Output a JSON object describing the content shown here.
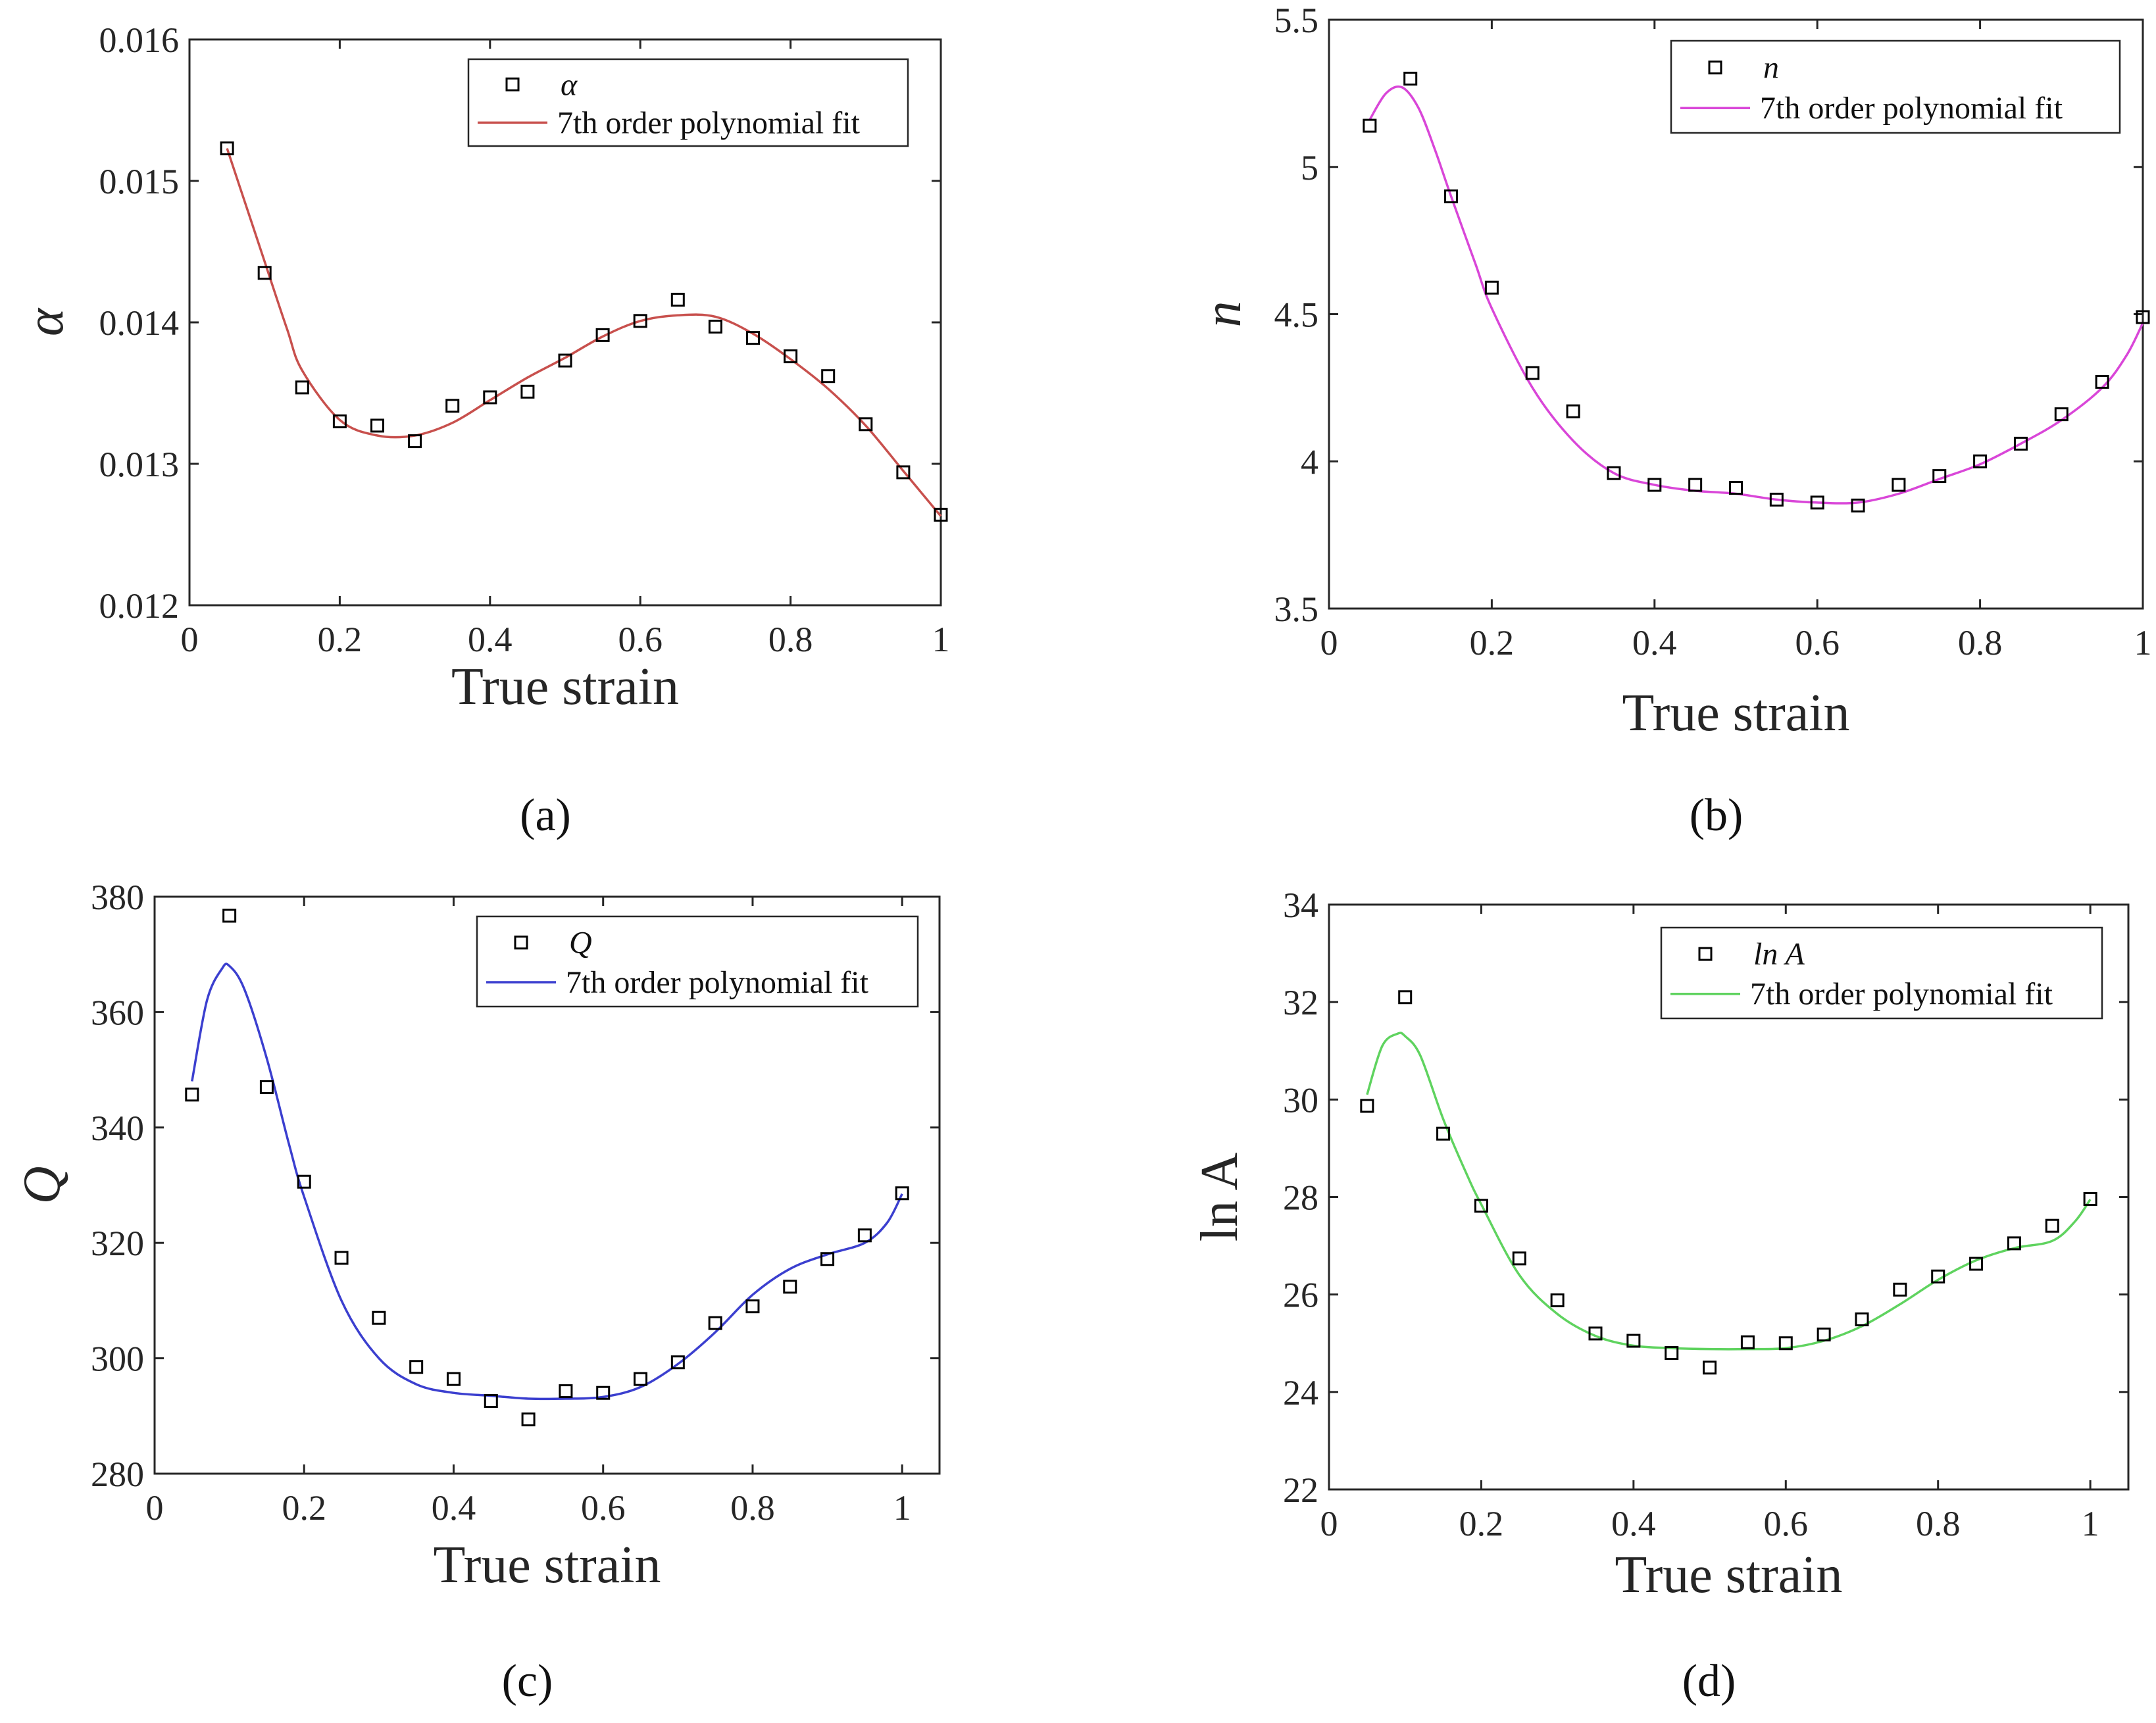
{
  "chart_data": [
    {
      "type": "scatter",
      "panel_label": "(a)",
      "xlabel": "True strain",
      "ylabel": "α",
      "xlim": [
        0,
        1
      ],
      "ylim": [
        0.012,
        0.016
      ],
      "xticks": [
        0,
        0.2,
        0.4,
        0.6,
        0.8,
        1
      ],
      "xtick_labels": [
        "0",
        "0.2",
        "0.4",
        "0.6",
        "0.8",
        "1"
      ],
      "yticks": [
        0.012,
        0.013,
        0.014,
        0.015,
        0.016
      ],
      "ytick_labels": [
        "0.012",
        "0.013",
        "0.014",
        "0.015",
        "0.016"
      ],
      "legend_position": "top-right",
      "series": [
        {
          "name": "α",
          "kind": "markers",
          "marker": "square",
          "color": "#000000",
          "x": [
            0.05,
            0.1,
            0.15,
            0.2,
            0.25,
            0.3,
            0.35,
            0.4,
            0.45,
            0.5,
            0.55,
            0.6,
            0.65,
            0.7,
            0.75,
            0.8,
            0.85,
            0.9,
            0.95,
            1.0
          ],
          "y": [
            0.01523,
            0.01435,
            0.01354,
            0.0133,
            0.01327,
            0.01316,
            0.01341,
            0.01347,
            0.01351,
            0.01373,
            0.01391,
            0.01401,
            0.01416,
            0.01397,
            0.01389,
            0.01376,
            0.01362,
            0.01328,
            0.01294,
            0.01264
          ]
        },
        {
          "name": "7th order polynomial fit",
          "kind": "line",
          "color": "#c8504d",
          "x": [
            0.05,
            0.08,
            0.1,
            0.13,
            0.15,
            0.2,
            0.25,
            0.3,
            0.35,
            0.4,
            0.45,
            0.5,
            0.55,
            0.6,
            0.65,
            0.7,
            0.75,
            0.8,
            0.85,
            0.9,
            0.95,
            1.0
          ],
          "y": [
            0.01523,
            0.01475,
            0.01443,
            0.01395,
            0.01366,
            0.01331,
            0.0132,
            0.0132,
            0.01329,
            0.01345,
            0.01361,
            0.01375,
            0.0139,
            0.01401,
            0.01405,
            0.01404,
            0.01392,
            0.01374,
            0.01353,
            0.01327,
            0.01295,
            0.01263
          ]
        }
      ]
    },
    {
      "type": "scatter",
      "panel_label": "(b)",
      "xlabel": "True strain",
      "ylabel": "n",
      "xlim": [
        0,
        1
      ],
      "ylim": [
        3.5,
        5.5
      ],
      "xticks": [
        0,
        0.2,
        0.4,
        0.6,
        0.8,
        1
      ],
      "xtick_labels": [
        "0",
        "0.2",
        "0.4",
        "0.6",
        "0.8",
        "1"
      ],
      "yticks": [
        3.5,
        4,
        4.5,
        5,
        5.5
      ],
      "ytick_labels": [
        "3.5",
        "4",
        "4.5",
        "5",
        "5.5"
      ],
      "legend_position": "top-right",
      "series": [
        {
          "name": "n",
          "kind": "markers",
          "marker": "square",
          "color": "#000000",
          "x": [
            0.05,
            0.1,
            0.15,
            0.2,
            0.25,
            0.3,
            0.35,
            0.4,
            0.45,
            0.5,
            0.55,
            0.6,
            0.65,
            0.7,
            0.75,
            0.8,
            0.85,
            0.9,
            0.95,
            1.0
          ],
          "y": [
            5.14,
            5.3,
            4.9,
            4.59,
            4.3,
            4.17,
            3.96,
            3.92,
            3.92,
            3.91,
            3.87,
            3.86,
            3.85,
            3.92,
            3.95,
            4.0,
            4.06,
            4.16,
            4.27,
            4.49
          ]
        },
        {
          "name": "7th order polynomial fit",
          "kind": "line",
          "color": "#d946d8",
          "x": [
            0.05,
            0.07,
            0.09,
            0.11,
            0.13,
            0.15,
            0.18,
            0.2,
            0.25,
            0.3,
            0.35,
            0.4,
            0.45,
            0.5,
            0.55,
            0.6,
            0.65,
            0.7,
            0.75,
            0.8,
            0.85,
            0.9,
            0.95,
            0.98,
            1.0
          ],
          "y": [
            5.16,
            5.25,
            5.27,
            5.2,
            5.06,
            4.9,
            4.67,
            4.52,
            4.25,
            4.07,
            3.96,
            3.92,
            3.9,
            3.89,
            3.87,
            3.86,
            3.86,
            3.89,
            3.94,
            3.99,
            4.06,
            4.14,
            4.25,
            4.36,
            4.47
          ]
        }
      ]
    },
    {
      "type": "scatter",
      "panel_label": "(c)",
      "xlabel": "True strain",
      "ylabel": "Q",
      "xlim": [
        0,
        1.05
      ],
      "ylim": [
        280,
        380
      ],
      "xticks": [
        0,
        0.2,
        0.4,
        0.6,
        0.8,
        1
      ],
      "xtick_labels": [
        "0",
        "0.2",
        "0.4",
        "0.6",
        "0.8",
        "1"
      ],
      "yticks": [
        280,
        300,
        320,
        340,
        360,
        380
      ],
      "ytick_labels": [
        "280",
        "300",
        "320",
        "340",
        "360",
        "380"
      ],
      "legend_position": "top-right",
      "series": [
        {
          "name": "Q",
          "kind": "markers",
          "marker": "square",
          "color": "#000000",
          "x": [
            0.05,
            0.1,
            0.15,
            0.2,
            0.25,
            0.3,
            0.35,
            0.4,
            0.45,
            0.5,
            0.55,
            0.6,
            0.65,
            0.7,
            0.75,
            0.8,
            0.85,
            0.9,
            0.95,
            1.0
          ],
          "y": [
            345.7,
            376.7,
            347.0,
            330.6,
            317.4,
            307.0,
            298.5,
            296.4,
            292.6,
            289.4,
            294.3,
            294.0,
            296.4,
            299.3,
            306.1,
            309.0,
            312.4,
            317.2,
            321.3,
            328.6
          ]
        },
        {
          "name": "7th order polynomial fit",
          "kind": "line",
          "color": "#3b3fcf",
          "x": [
            0.05,
            0.07,
            0.09,
            0.1,
            0.12,
            0.15,
            0.18,
            0.2,
            0.25,
            0.3,
            0.35,
            0.4,
            0.45,
            0.5,
            0.55,
            0.6,
            0.65,
            0.7,
            0.75,
            0.8,
            0.85,
            0.9,
            0.95,
            0.98,
            1.0
          ],
          "y": [
            348.0,
            362.0,
            367.5,
            368.0,
            364.0,
            352.0,
            337.0,
            328.0,
            310.0,
            300.0,
            295.5,
            294.0,
            293.5,
            293.0,
            293.0,
            293.3,
            295.0,
            299.0,
            304.5,
            311.0,
            315.5,
            318.0,
            320.0,
            323.5,
            328.5
          ]
        }
      ]
    },
    {
      "type": "scatter",
      "panel_label": "(d)",
      "xlabel": "True strain",
      "ylabel": "ln A",
      "xlim": [
        0,
        1.05
      ],
      "ylim": [
        22,
        34
      ],
      "xticks": [
        0,
        0.2,
        0.4,
        0.6,
        0.8,
        1
      ],
      "xtick_labels": [
        "0",
        "0.2",
        "0.4",
        "0.6",
        "0.8",
        "1"
      ],
      "yticks": [
        22,
        24,
        26,
        28,
        30,
        32,
        34
      ],
      "ytick_labels": [
        "22",
        "24",
        "26",
        "28",
        "30",
        "32",
        "34"
      ],
      "legend_position": "top-right",
      "series": [
        {
          "name": "ln A",
          "kind": "markers",
          "marker": "square",
          "color": "#000000",
          "x": [
            0.05,
            0.1,
            0.15,
            0.2,
            0.25,
            0.3,
            0.35,
            0.4,
            0.45,
            0.5,
            0.55,
            0.6,
            0.65,
            0.7,
            0.75,
            0.8,
            0.85,
            0.9,
            0.95,
            1.0
          ],
          "y": [
            29.87,
            32.1,
            29.3,
            27.82,
            26.74,
            25.88,
            25.2,
            25.05,
            24.8,
            24.5,
            25.02,
            25.0,
            25.18,
            25.49,
            26.1,
            26.37,
            26.63,
            27.05,
            27.41,
            27.96
          ]
        },
        {
          "name": "7th order polynomial fit",
          "kind": "line",
          "color": "#5fd35f",
          "x": [
            0.05,
            0.07,
            0.09,
            0.1,
            0.12,
            0.15,
            0.18,
            0.2,
            0.25,
            0.3,
            0.35,
            0.4,
            0.45,
            0.5,
            0.55,
            0.6,
            0.65,
            0.7,
            0.75,
            0.8,
            0.85,
            0.9,
            0.95,
            0.98,
            1.0
          ],
          "y": [
            30.1,
            31.1,
            31.35,
            31.3,
            30.9,
            29.6,
            28.5,
            27.85,
            26.4,
            25.6,
            25.15,
            24.95,
            24.9,
            24.88,
            24.88,
            24.9,
            25.05,
            25.35,
            25.8,
            26.3,
            26.7,
            26.95,
            27.1,
            27.5,
            27.95
          ]
        }
      ]
    }
  ]
}
